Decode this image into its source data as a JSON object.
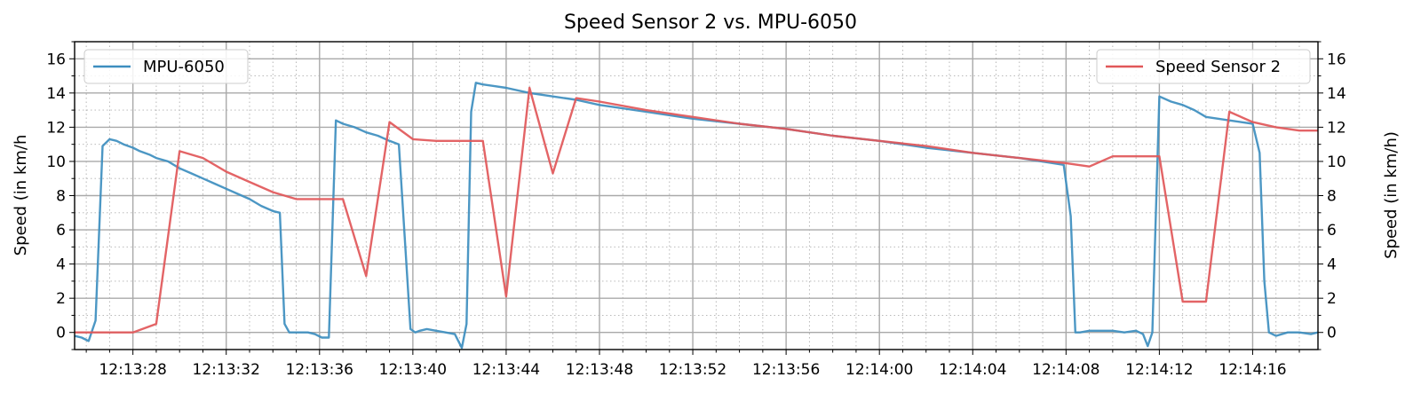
{
  "chart_data": {
    "type": "line",
    "title": "Speed Sensor 2 vs. MPU-6050",
    "ylabel_left": "Speed (in km/h",
    "ylabel_right": "Speed (in km/h)",
    "xlim": [
      25.5,
      78.8
    ],
    "ylim": [
      -1,
      17
    ],
    "x_ticks": [
      28,
      32,
      36,
      40,
      44,
      48,
      52,
      56,
      60,
      64,
      68,
      72,
      76
    ],
    "x_tick_labels": [
      "12:13:28",
      "12:13:32",
      "12:13:36",
      "12:13:40",
      "12:13:44",
      "12:13:48",
      "12:13:52",
      "12:13:56",
      "12:14:00",
      "12:14:04",
      "12:14:08",
      "12:14:12",
      "12:14:16"
    ],
    "y_ticks": [
      0,
      2,
      4,
      6,
      8,
      10,
      12,
      14,
      16
    ],
    "y_tick_labels": [
      "0",
      "2",
      "4",
      "6",
      "8",
      "10",
      "12",
      "14",
      "16"
    ],
    "grid": true,
    "series": [
      {
        "name": "MPU-6050",
        "color": "#3d8ebf",
        "legend": "top-left",
        "axis": "left",
        "x": [
          25.5,
          25.8,
          26.1,
          26.4,
          26.7,
          27.0,
          27.3,
          27.6,
          28.0,
          28.3,
          28.7,
          29.0,
          29.5,
          30.0,
          30.5,
          31.0,
          31.5,
          32.0,
          32.5,
          33.0,
          33.5,
          34.0,
          34.3,
          34.5,
          34.7,
          35.0,
          35.5,
          35.8,
          36.1,
          36.4,
          36.7,
          37.0,
          37.5,
          38.0,
          38.5,
          39.0,
          39.4,
          39.7,
          39.9,
          40.1,
          40.3,
          40.6,
          41.0,
          41.4,
          41.8,
          42.1,
          42.3,
          42.5,
          42.7,
          43.0,
          43.5,
          44.0,
          45.0,
          46.0,
          47.0,
          48.0,
          50.0,
          52.0,
          54.0,
          56.0,
          58.0,
          60.0,
          62.0,
          64.0,
          66.0,
          67.9,
          68.2,
          68.4,
          68.6,
          69.0,
          69.5,
          70.0,
          70.5,
          71.0,
          71.3,
          71.5,
          71.7,
          72.0,
          72.5,
          73.0,
          73.5,
          74.0,
          75.0,
          76.0,
          76.3,
          76.5,
          76.7,
          77.0,
          77.5,
          78.0,
          78.5,
          78.8
        ],
        "y": [
          -0.2,
          -0.3,
          -0.5,
          0.7,
          10.9,
          11.3,
          11.2,
          11.0,
          10.8,
          10.6,
          10.4,
          10.2,
          10.0,
          9.6,
          9.3,
          9.0,
          8.7,
          8.4,
          8.1,
          7.8,
          7.4,
          7.1,
          7.0,
          0.5,
          0.0,
          0.0,
          0.0,
          -0.1,
          -0.3,
          -0.3,
          12.4,
          12.2,
          12.0,
          11.7,
          11.5,
          11.2,
          11.0,
          4.5,
          0.2,
          0.0,
          0.1,
          0.2,
          0.1,
          0.0,
          -0.1,
          -0.9,
          0.5,
          12.9,
          14.6,
          14.5,
          14.4,
          14.3,
          14.0,
          13.8,
          13.6,
          13.3,
          12.9,
          12.5,
          12.2,
          11.9,
          11.5,
          11.2,
          10.8,
          10.5,
          10.2,
          9.8,
          6.8,
          0.0,
          0.0,
          0.1,
          0.1,
          0.1,
          0.0,
          0.1,
          -0.1,
          -0.8,
          0.0,
          13.8,
          13.5,
          13.3,
          13.0,
          12.6,
          12.4,
          12.2,
          10.5,
          3.0,
          0.0,
          -0.2,
          0.0,
          0.0,
          -0.1,
          0.0
        ]
      },
      {
        "name": "Speed Sensor 2",
        "color": "#e15759",
        "legend": "top-right",
        "axis": "right",
        "x": [
          25.5,
          28.0,
          29.0,
          30.0,
          31.0,
          32.0,
          33.0,
          34.0,
          35.0,
          36.0,
          37.0,
          38.0,
          39.0,
          40.0,
          41.0,
          42.0,
          43.0,
          44.0,
          45.0,
          46.0,
          47.0,
          48.0,
          50.0,
          52.0,
          54.0,
          56.0,
          58.0,
          60.0,
          62.0,
          64.0,
          66.0,
          68.0,
          69.0,
          70.0,
          71.0,
          72.0,
          73.0,
          74.0,
          75.0,
          76.0,
          77.0,
          78.0,
          78.8
        ],
        "y": [
          0.0,
          0.0,
          0.5,
          10.6,
          10.2,
          9.4,
          8.8,
          8.2,
          7.8,
          7.8,
          7.8,
          3.3,
          12.3,
          11.3,
          11.2,
          11.2,
          11.2,
          2.1,
          14.3,
          9.3,
          13.7,
          13.5,
          13.0,
          12.6,
          12.2,
          11.9,
          11.5,
          11.2,
          10.9,
          10.5,
          10.2,
          9.9,
          9.7,
          10.3,
          10.3,
          10.3,
          1.8,
          1.8,
          12.9,
          12.3,
          12.0,
          11.8,
          11.8
        ]
      }
    ]
  }
}
